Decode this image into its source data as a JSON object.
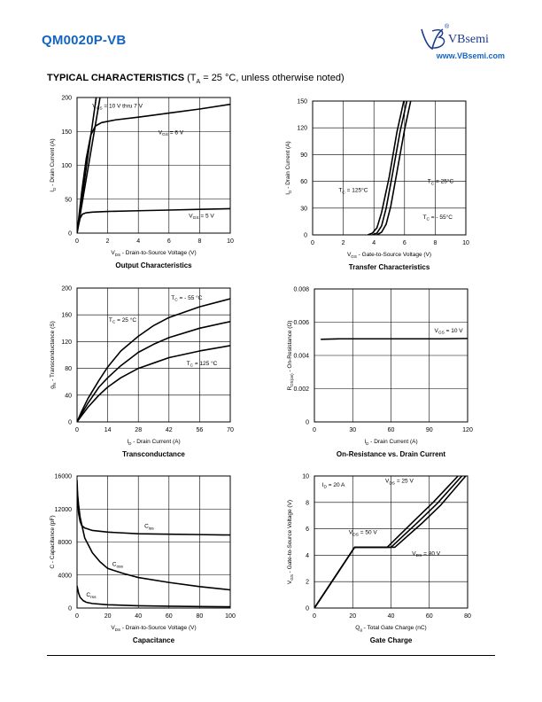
{
  "header": {
    "part_number": "QM0020P-VB",
    "brand": "VBsemi",
    "brand_url": "www.VBsemi.com",
    "reg_mark": "®"
  },
  "section": {
    "title": "TYPICAL CHARACTERISTICS",
    "condition_prefix": "(T",
    "condition_sub": "A",
    "condition_rest": " = 25 °C, unless otherwise noted)"
  },
  "chart_data": [
    {
      "id": "output",
      "type": "line",
      "title": "Output Characteristics",
      "xlabel": "VDS - Drain-to-Source Voltage (V)",
      "ylabel": "ID - Drain Current (A)",
      "xlim": [
        0,
        10
      ],
      "ylim": [
        0,
        200
      ],
      "xticks": [
        0,
        2,
        4,
        6,
        8,
        10
      ],
      "yticks": [
        0,
        50,
        100,
        150,
        200
      ],
      "grid": true,
      "series": [
        {
          "name": "VGS = 10 V thru 7 V",
          "x": [
            0,
            0.5,
            1.0,
            1.25
          ],
          "y": [
            0,
            80,
            160,
            200
          ]
        },
        {
          "name": "VGS = 10 V thru 7 V",
          "x": [
            0,
            0.6,
            1.2,
            1.5
          ],
          "y": [
            0,
            80,
            160,
            200
          ]
        },
        {
          "name": "VGS = 6 V",
          "x": [
            0,
            0.3,
            0.6,
            0.9,
            1.2,
            1.6,
            2.5,
            4,
            6,
            8,
            10
          ],
          "y": [
            0,
            60,
            110,
            145,
            158,
            163,
            167,
            171,
            177,
            183,
            190
          ]
        },
        {
          "name": "VGS = 5 V",
          "x": [
            0,
            0.1,
            0.2,
            0.35,
            0.6,
            1,
            2,
            4,
            6,
            8,
            10
          ],
          "y": [
            0,
            12,
            22,
            28,
            30,
            31,
            32,
            33,
            34,
            35,
            36
          ]
        }
      ],
      "annotations": [
        {
          "text": "V",
          "sub": "GS",
          "rest": " = 10 V thru 7 V",
          "x": 1.0,
          "y": 185
        },
        {
          "text": "V",
          "sub": "GS",
          "rest": " = 6 V",
          "x": 5.3,
          "y": 146
        },
        {
          "text": "V",
          "sub": "GS",
          "rest": " = 5 V",
          "x": 7.3,
          "y": 23
        }
      ]
    },
    {
      "id": "transfer",
      "type": "line",
      "title": "Transfer Characteristics",
      "xlabel": "VGS - Gate-to-Source Voltage (V)",
      "ylabel": "ID - Drain Current (A)",
      "xlim": [
        0,
        10
      ],
      "ylim": [
        0,
        150
      ],
      "xticks": [
        0,
        2,
        4,
        6,
        8,
        10
      ],
      "yticks": [
        0,
        30,
        60,
        90,
        120,
        150
      ],
      "grid": true,
      "series": [
        {
          "name": "TC = 125°C",
          "x": [
            3.6,
            3.9,
            4.2,
            4.5,
            5.0,
            5.5,
            5.95
          ],
          "y": [
            0,
            2,
            8,
            25,
            65,
            115,
            150
          ]
        },
        {
          "name": "TC = 25°C",
          "x": [
            3.9,
            4.2,
            4.5,
            4.8,
            5.2,
            5.7,
            6.15
          ],
          "y": [
            0,
            2,
            10,
            30,
            67,
            115,
            150
          ]
        },
        {
          "name": "TC = - 55°C",
          "x": [
            4.2,
            4.5,
            4.8,
            5.1,
            5.5,
            6.0,
            6.4
          ],
          "y": [
            0,
            3,
            12,
            32,
            70,
            118,
            150
          ]
        }
      ],
      "annotations": [
        {
          "text": "T",
          "sub": "C",
          "rest": " = 25°C",
          "x": 7.5,
          "y": 58
        },
        {
          "text": "T",
          "sub": "C",
          "rest": " = 125°C",
          "x": 1.7,
          "y": 48
        },
        {
          "text": "T",
          "sub": "C",
          "rest": " = - 55°C",
          "x": 7.2,
          "y": 18
        }
      ]
    },
    {
      "id": "transconductance",
      "type": "line",
      "title": "Transconductance",
      "xlabel": "ID - Drain Current (A)",
      "ylabel": "gfs - Transconductance (S)",
      "xlim": [
        0,
        70
      ],
      "ylim": [
        0,
        200
      ],
      "xticks": [
        0,
        14,
        28,
        42,
        56,
        70
      ],
      "yticks": [
        0,
        40,
        80,
        120,
        160,
        200
      ],
      "grid": true,
      "series": [
        {
          "name": "TC = - 55 °C",
          "x": [
            0,
            2,
            5,
            10,
            14,
            20,
            28,
            35,
            42,
            56,
            70
          ],
          "y": [
            0,
            15,
            35,
            62,
            82,
            106,
            128,
            144,
            156,
            172,
            184
          ]
        },
        {
          "name": "TC = 25 °C",
          "x": [
            0,
            2,
            5,
            10,
            14,
            20,
            28,
            35,
            42,
            56,
            70
          ],
          "y": [
            0,
            12,
            28,
            52,
            66,
            84,
            104,
            116,
            126,
            140,
            150
          ]
        },
        {
          "name": "TC = 125 °C",
          "x": [
            0,
            2,
            5,
            10,
            14,
            20,
            28,
            35,
            42,
            56,
            70
          ],
          "y": [
            0,
            9,
            22,
            40,
            52,
            66,
            80,
            88,
            96,
            106,
            114
          ]
        }
      ],
      "annotations": [
        {
          "text": "T",
          "sub": "C",
          "rest": " = - 55 °C",
          "x": 43,
          "y": 183
        },
        {
          "text": "T",
          "sub": "C",
          "rest": " = 25 °C",
          "x": 14.5,
          "y": 150
        },
        {
          "text": "T",
          "sub": "C",
          "rest": " = 125 °C",
          "x": 50,
          "y": 85
        }
      ]
    },
    {
      "id": "on_resistance",
      "type": "line",
      "title": "On-Resistance vs. Drain Current",
      "xlabel": "ID - Drain Current (A)",
      "ylabel": "RDS(on) - On-Resistance (Ω)",
      "xlim": [
        0,
        120
      ],
      "ylim": [
        0,
        0.008
      ],
      "xticks": [
        0,
        30,
        60,
        90,
        120
      ],
      "yticks": [
        0,
        0.002,
        0.004,
        0.006,
        0.008
      ],
      "ytick_labels": [
        "0",
        "0.002",
        "0.004",
        "0.006",
        "0.008"
      ],
      "grid": true,
      "series": [
        {
          "name": "VGS = 10 V",
          "x": [
            5,
            20,
            40,
            60,
            80,
            100,
            120
          ],
          "y": [
            0.00497,
            0.005,
            0.005,
            0.005,
            0.005,
            0.005,
            0.00502
          ]
        }
      ],
      "annotations": [
        {
          "text": "V",
          "sub": "GS",
          "rest": " = 10 V",
          "x": 94,
          "y": 0.0054
        }
      ]
    },
    {
      "id": "capacitance",
      "type": "line",
      "title": "Capacitance",
      "xlabel": "VDS - Drain-to-Source Voltage (V)",
      "ylabel": "C - Capacitance (pF)",
      "xlim": [
        0,
        100
      ],
      "ylim": [
        0,
        16000
      ],
      "xticks": [
        0,
        20,
        40,
        60,
        80,
        100
      ],
      "yticks": [
        0,
        4000,
        8000,
        12000,
        16000
      ],
      "grid": true,
      "series": [
        {
          "name": "Ciss",
          "x": [
            0,
            0.5,
            1,
            2,
            3,
            5,
            10,
            20,
            40,
            60,
            80,
            100
          ],
          "y": [
            15500,
            13000,
            11500,
            10500,
            10000,
            9700,
            9400,
            9200,
            9000,
            8950,
            8900,
            8850
          ]
        },
        {
          "name": "Coss",
          "x": [
            0,
            1,
            2,
            5,
            10,
            15,
            20,
            30,
            40,
            60,
            80,
            100
          ],
          "y": [
            14500,
            12500,
            11000,
            8500,
            6700,
            5600,
            4800,
            4200,
            3700,
            3100,
            2600,
            2200
          ]
        },
        {
          "name": "Crss",
          "x": [
            0,
            1,
            2,
            4,
            6,
            10,
            20,
            40,
            60,
            80,
            100
          ],
          "y": [
            2700,
            1800,
            1300,
            900,
            700,
            550,
            400,
            280,
            220,
            180,
            150
          ]
        }
      ],
      "annotations": [
        {
          "text": "C",
          "sub": "iss",
          "rest": "",
          "x": 44,
          "y": 9700
        },
        {
          "text": "C",
          "sub": "oss",
          "rest": "",
          "x": 23,
          "y": 5100
        },
        {
          "text": "C",
          "sub": "rss",
          "rest": "",
          "x": 6,
          "y": 1400
        }
      ]
    },
    {
      "id": "gate_charge",
      "type": "line",
      "title": "Gate Charge",
      "xlabel": "Qg - Total Gate Charge (nC)",
      "ylabel": "VGS - Gate-to-Source Voltage (V)",
      "xlim": [
        0,
        80
      ],
      "ylim": [
        0,
        10
      ],
      "xticks": [
        0,
        20,
        40,
        60,
        80
      ],
      "yticks": [
        0,
        2,
        4,
        6,
        8,
        10
      ],
      "grid": true,
      "series": [
        {
          "name": "VDS = 25 V",
          "x": [
            0,
            21,
            38,
            52,
            62,
            75
          ],
          "y": [
            0,
            4.6,
            4.6,
            6.6,
            8.0,
            10.0
          ]
        },
        {
          "name": "VDS = 50 V",
          "x": [
            0,
            21,
            40,
            54,
            64,
            77
          ],
          "y": [
            0,
            4.6,
            4.6,
            6.5,
            7.9,
            10.0
          ]
        },
        {
          "name": "VDS = 80 V",
          "x": [
            0,
            21,
            42,
            56,
            66,
            79
          ],
          "y": [
            0,
            4.6,
            4.6,
            6.4,
            7.8,
            10.0
          ]
        }
      ],
      "annotations": [
        {
          "text": "I",
          "sub": "D",
          "rest": " = 20 A",
          "x": 4,
          "y": 9.2
        },
        {
          "text": "V",
          "sub": "DS",
          "rest": " = 25 V",
          "x": 37,
          "y": 9.5
        },
        {
          "text": "V",
          "sub": "DS",
          "rest": " = 50 V",
          "x": 18,
          "y": 5.6
        },
        {
          "text": "V",
          "sub": "DS",
          "rest": " = 80 V",
          "x": 51,
          "y": 4.0
        }
      ]
    }
  ]
}
